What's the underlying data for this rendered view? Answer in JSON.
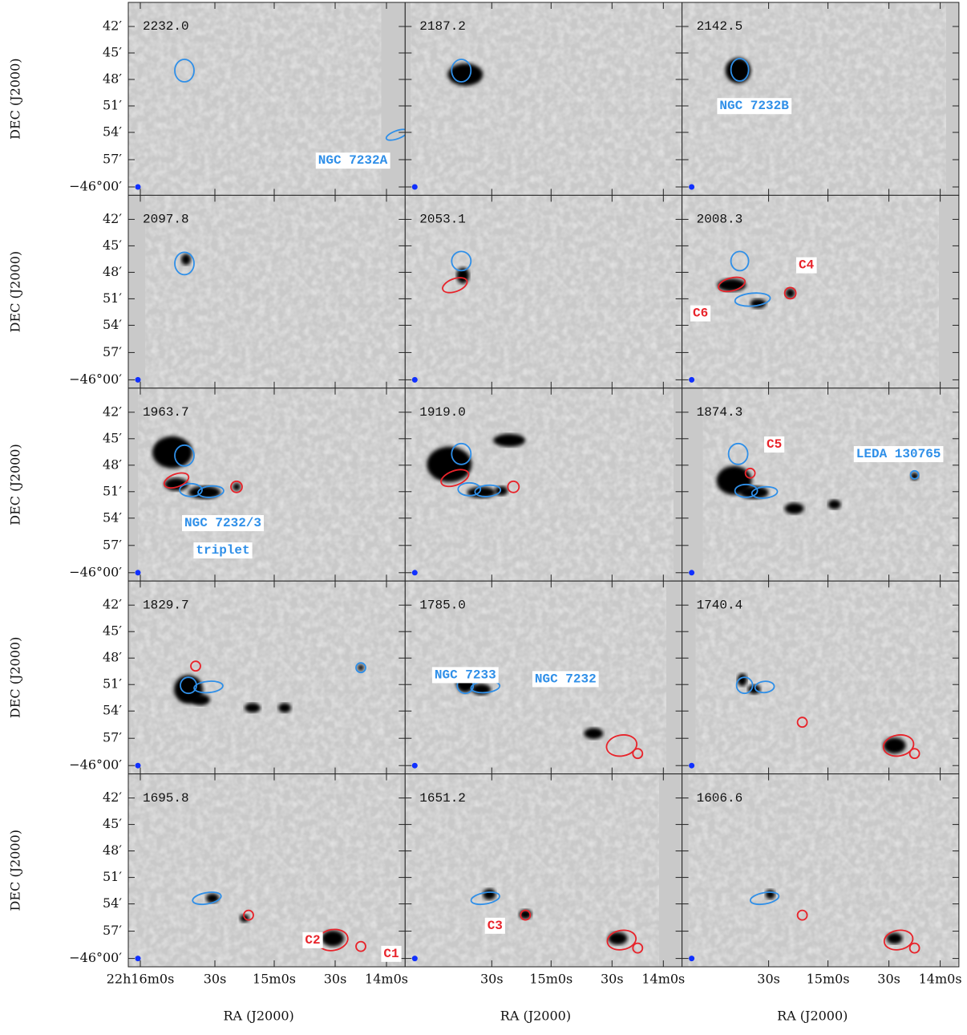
{
  "y_axis_label": "DEC (J2000)",
  "x_axis_label": "RA (J2000)",
  "y_ticks": [
    "42′",
    "45′",
    "48′",
    "51′",
    "54′",
    "57′",
    "−46°00′"
  ],
  "x_ticks_first": [
    "22h16m0s",
    "30s",
    "15m0s",
    "30s",
    "14m0s"
  ],
  "x_ticks": [
    "30s",
    "15m0s",
    "30s",
    "14m0s"
  ],
  "label_colors": {
    "blue": "#2f8fe8",
    "red": "#e8232a"
  },
  "panels": [
    {
      "velocity": "2232.0",
      "labels": [
        {
          "text": "NGC 7232A",
          "color": "blue"
        }
      ]
    },
    {
      "velocity": "2187.2",
      "labels": []
    },
    {
      "velocity": "2142.5",
      "labels": [
        {
          "text": "NGC 7232B",
          "color": "blue"
        }
      ]
    },
    {
      "velocity": "2097.8",
      "labels": []
    },
    {
      "velocity": "2053.1",
      "labels": []
    },
    {
      "velocity": "2008.3",
      "labels": [
        {
          "text": "C4",
          "color": "red"
        },
        {
          "text": "C6",
          "color": "red"
        }
      ]
    },
    {
      "velocity": "1963.7",
      "labels": [
        {
          "text": "NGC 7232/3",
          "color": "blue"
        },
        {
          "text": "triplet",
          "color": "blue"
        }
      ]
    },
    {
      "velocity": "1919.0",
      "labels": []
    },
    {
      "velocity": "1874.3",
      "labels": [
        {
          "text": "C5",
          "color": "red"
        },
        {
          "text": "LEDA 130765",
          "color": "blue"
        }
      ]
    },
    {
      "velocity": "1829.7",
      "labels": []
    },
    {
      "velocity": "1785.0",
      "labels": [
        {
          "text": "NGC 7233",
          "color": "blue"
        },
        {
          "text": "NGC 7232",
          "color": "blue"
        }
      ]
    },
    {
      "velocity": "1740.4",
      "labels": []
    },
    {
      "velocity": "1695.8",
      "labels": [
        {
          "text": "C2",
          "color": "red"
        },
        {
          "text": "C1",
          "color": "red"
        }
      ]
    },
    {
      "velocity": "1651.2",
      "labels": [
        {
          "text": "C3",
          "color": "red"
        }
      ]
    },
    {
      "velocity": "1606.6",
      "labels": []
    }
  ]
}
